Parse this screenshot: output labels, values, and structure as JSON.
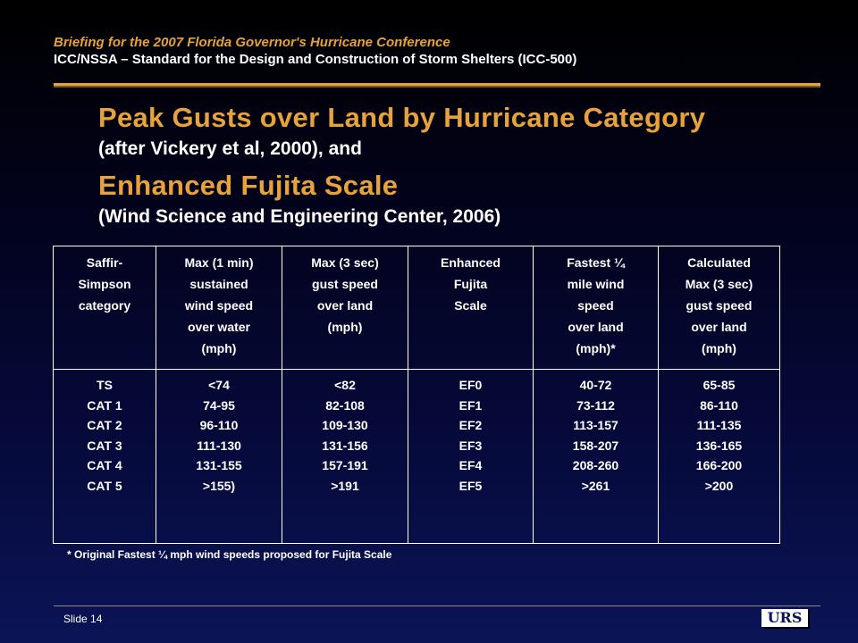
{
  "header": {
    "line1": "Briefing for the 2007 Florida Governor's Hurricane Conference",
    "line2": "ICC/NSSA – Standard for the Design and Construction of Storm Shelters (ICC-500)"
  },
  "title": {
    "main1": "Peak Gusts over Land by Hurricane Category",
    "sub1": "(after Vickery et al, 2000), and",
    "main2": "Enhanced Fujita Scale",
    "sub2": "(Wind Science and Engineering Center, 2006)"
  },
  "table": {
    "headers": [
      "Saffir-\nSimpson\ncategory",
      "Max (1 min)\nsustained\nwind speed\nover water\n(mph)",
      "Max (3 sec)\ngust speed\nover land\n(mph)",
      "Enhanced\nFujita\nScale",
      "Fastest ¼\nmile wind\nspeed\nover land\n(mph)*",
      "Calculated\nMax (3 sec)\ngust speed\nover land\n(mph)"
    ],
    "columns": [
      "TS\nCAT 1\nCAT 2\nCAT 3\nCAT 4\nCAT 5",
      "<74\n74-95\n96-110\n111-130\n131-155\n>155)",
      "<82\n82-108\n109-130\n131-156\n157-191\n>191",
      "EF0\nEF1\nEF2\nEF3\nEF4\nEF5",
      "40-72\n73-112\n113-157\n158-207\n208-260\n>261",
      "65-85\n86-110\n111-135\n136-165\n166-200\n>200"
    ]
  },
  "footnote": "* Original Fastest ¼ mph wind speeds proposed for Fujita Scale",
  "footer": {
    "slide_label": "Slide 14",
    "logo_text": "URS"
  },
  "colors": {
    "accent": "#e8a23c",
    "background_top": "#000000",
    "background_bottom": "#0b1456"
  }
}
